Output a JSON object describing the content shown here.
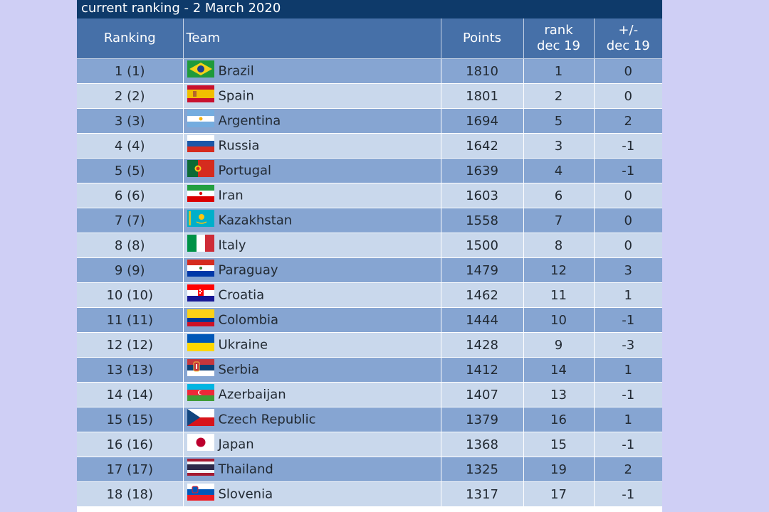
{
  "title": "current ranking - 2 March 2020",
  "headers": {
    "ranking": "Ranking",
    "team": "Team",
    "points": "Points",
    "rank_dec19_line1": "rank",
    "rank_dec19_line2": "dec 19",
    "delta_line1": "+/-",
    "delta_line2": "dec 19"
  },
  "rows": [
    {
      "ranking": "1 (1)",
      "team": "Brazil",
      "flag": "brazil-flag-icon",
      "points": "1810",
      "rank_dec19": "1",
      "delta": "0"
    },
    {
      "ranking": "2 (2)",
      "team": "Spain",
      "flag": "spain-flag-icon",
      "points": "1801",
      "rank_dec19": "2",
      "delta": "0"
    },
    {
      "ranking": "3 (3)",
      "team": "Argentina",
      "flag": "argentina-flag-icon",
      "points": "1694",
      "rank_dec19": "5",
      "delta": "2"
    },
    {
      "ranking": "4 (4)",
      "team": "Russia",
      "flag": "russia-flag-icon",
      "points": "1642",
      "rank_dec19": "3",
      "delta": "-1"
    },
    {
      "ranking": "5 (5)",
      "team": "Portugal",
      "flag": "portugal-flag-icon",
      "points": "1639",
      "rank_dec19": "4",
      "delta": "-1"
    },
    {
      "ranking": "6 (6)",
      "team": "Iran",
      "flag": "iran-flag-icon",
      "points": "1603",
      "rank_dec19": "6",
      "delta": "0"
    },
    {
      "ranking": "7 (7)",
      "team": "Kazakhstan",
      "flag": "kazakhstan-flag-icon",
      "points": "1558",
      "rank_dec19": "7",
      "delta": "0"
    },
    {
      "ranking": "8 (8)",
      "team": "Italy",
      "flag": "italy-flag-icon",
      "points": "1500",
      "rank_dec19": "8",
      "delta": "0"
    },
    {
      "ranking": "9 (9)",
      "team": "Paraguay",
      "flag": "paraguay-flag-icon",
      "points": "1479",
      "rank_dec19": "12",
      "delta": "3"
    },
    {
      "ranking": "10 (10)",
      "team": "Croatia",
      "flag": "croatia-flag-icon",
      "points": "1462",
      "rank_dec19": "11",
      "delta": "1"
    },
    {
      "ranking": "11 (11)",
      "team": "Colombia",
      "flag": "colombia-flag-icon",
      "points": "1444",
      "rank_dec19": "10",
      "delta": "-1"
    },
    {
      "ranking": "12 (12)",
      "team": "Ukraine",
      "flag": "ukraine-flag-icon",
      "points": "1428",
      "rank_dec19": "9",
      "delta": "-3"
    },
    {
      "ranking": "13 (13)",
      "team": "Serbia",
      "flag": "serbia-flag-icon",
      "points": "1412",
      "rank_dec19": "14",
      "delta": "1"
    },
    {
      "ranking": "14 (14)",
      "team": "Azerbaijan",
      "flag": "azerbaijan-flag-icon",
      "points": "1407",
      "rank_dec19": "13",
      "delta": "-1"
    },
    {
      "ranking": "15 (15)",
      "team": "Czech Republic",
      "flag": "czech-flag-icon",
      "points": "1379",
      "rank_dec19": "16",
      "delta": "1"
    },
    {
      "ranking": "16 (16)",
      "team": "Japan",
      "flag": "japan-flag-icon",
      "points": "1368",
      "rank_dec19": "15",
      "delta": "-1"
    },
    {
      "ranking": "17 (17)",
      "team": "Thailand",
      "flag": "thailand-flag-icon",
      "points": "1325",
      "rank_dec19": "19",
      "delta": "2"
    },
    {
      "ranking": "18 (18)",
      "team": "Slovenia",
      "flag": "slovenia-flag-icon",
      "points": "1317",
      "rank_dec19": "17",
      "delta": "-1"
    }
  ],
  "colors": {
    "page_background": "#cfcff5",
    "title_bar": "#0e3a6a",
    "header": "#4670a8",
    "row_dark": "#86a5d2",
    "row_light": "#c9d8ec"
  }
}
